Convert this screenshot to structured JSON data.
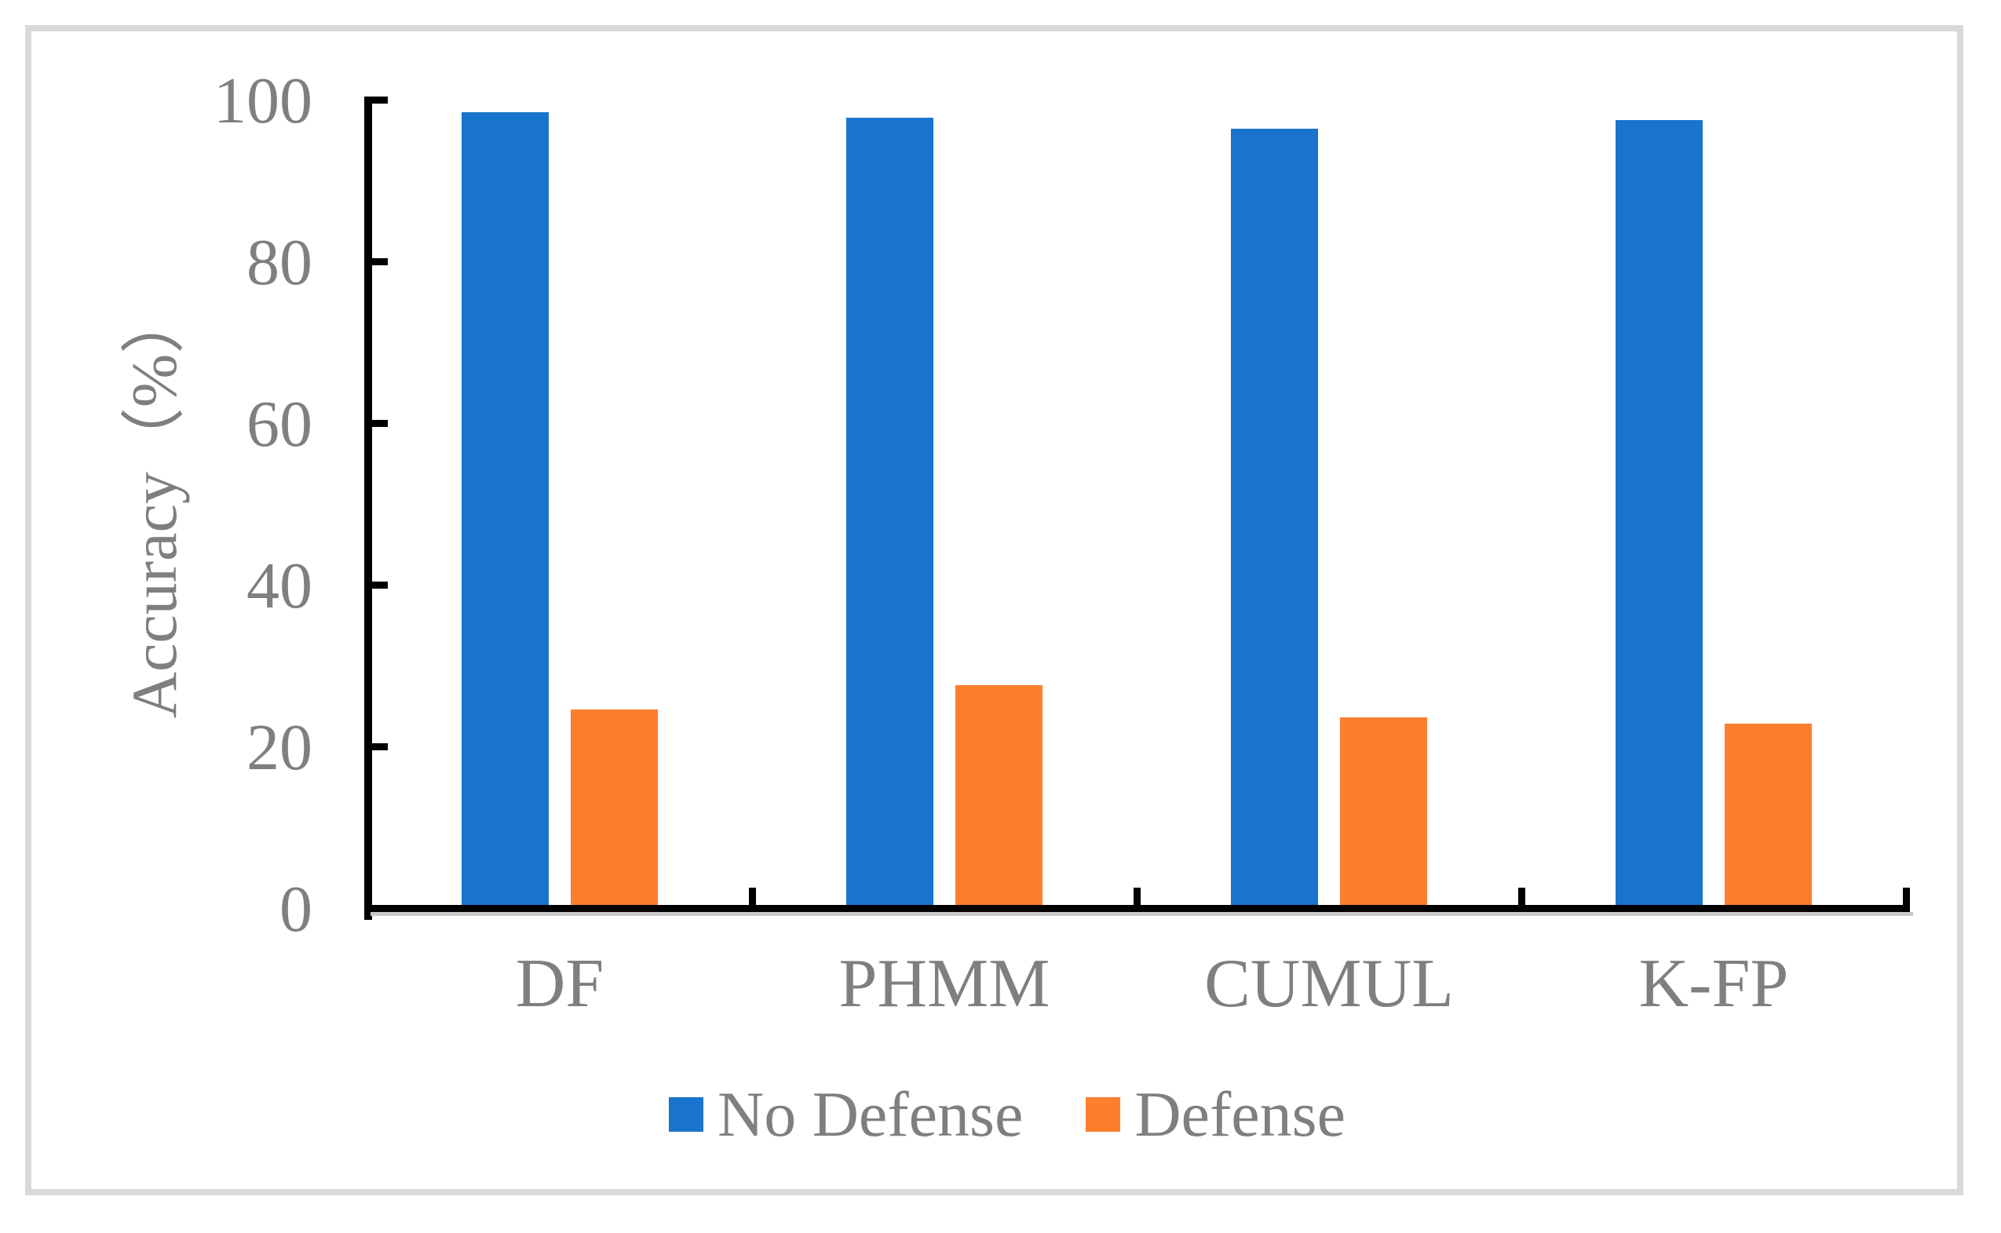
{
  "chart_data": {
    "type": "bar",
    "categories": [
      "DF",
      "PHMM",
      "CUMUL",
      "K-FP"
    ],
    "series": [
      {
        "name": "No Defense",
        "color": "#1874CD",
        "values": [
          98.4,
          97.8,
          96.4,
          97.5
        ]
      },
      {
        "name": "Defense",
        "color": "#FD7E2C",
        "values": [
          24.6,
          27.6,
          23.6,
          22.8
        ]
      }
    ],
    "ylabel": "Accuracy（%）",
    "yticks": [
      0,
      20,
      40,
      60,
      80,
      100
    ],
    "ylim": [
      0,
      100
    ],
    "grid": false,
    "legend_position": "bottom"
  },
  "colors": {
    "axis": "#000000",
    "text": "#7F7F7F",
    "frame_border": "#D9D9D9",
    "background": "#FFFFFF"
  }
}
